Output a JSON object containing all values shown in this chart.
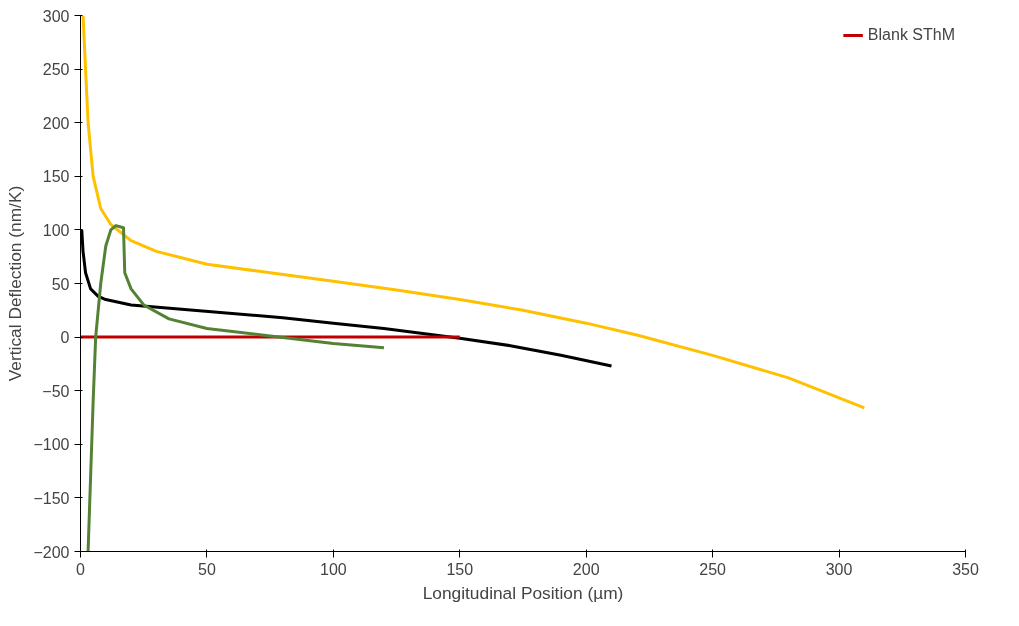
{
  "chart_data": {
    "type": "line",
    "xlabel": "Longitudinal Position (µm)",
    "ylabel": "Vertical Deflection (nm/K)",
    "xlim": [
      0,
      350
    ],
    "ylim": [
      -200,
      300
    ],
    "xticks": [
      0,
      50,
      100,
      150,
      200,
      250,
      300,
      350
    ],
    "yticks": [
      -200,
      -150,
      -100,
      -50,
      0,
      50,
      100,
      150,
      200,
      250,
      300
    ],
    "grid": false,
    "legend": "top right",
    "series": [
      {
        "color": "#000000",
        "x": [
          0.5,
          1,
          2,
          4,
          7,
          10,
          20,
          40,
          60,
          80,
          100,
          120,
          140,
          150,
          170,
          190,
          210
        ],
        "values": [
          100,
          80,
          60,
          45,
          38,
          35,
          30,
          26,
          22,
          18,
          13,
          8,
          2,
          -1,
          -8,
          -17,
          -27
        ]
      },
      {
        "color": "#ffc000",
        "x": [
          1,
          2,
          3,
          5,
          8,
          12,
          20,
          30,
          50,
          75,
          100,
          125,
          150,
          175,
          200,
          220,
          250,
          280,
          310
        ],
        "values": [
          300,
          250,
          200,
          150,
          120,
          105,
          90,
          80,
          68,
          60,
          52,
          44,
          35,
          25,
          13,
          2,
          -17,
          -38,
          -66
        ]
      },
      {
        "name": "Blank SThM",
        "color": "#c00000",
        "x": [
          0,
          150
        ],
        "values": [
          0,
          0
        ]
      },
      {
        "color": "#548235",
        "x": [
          3,
          4,
          5,
          6,
          8,
          10,
          12,
          14,
          17,
          17.5,
          20,
          25,
          35,
          50,
          75,
          100,
          120
        ],
        "values": [
          -200,
          -130,
          -60,
          0,
          50,
          85,
          100,
          104,
          102,
          60,
          45,
          30,
          17,
          8,
          1,
          -6,
          -10
        ]
      }
    ]
  }
}
